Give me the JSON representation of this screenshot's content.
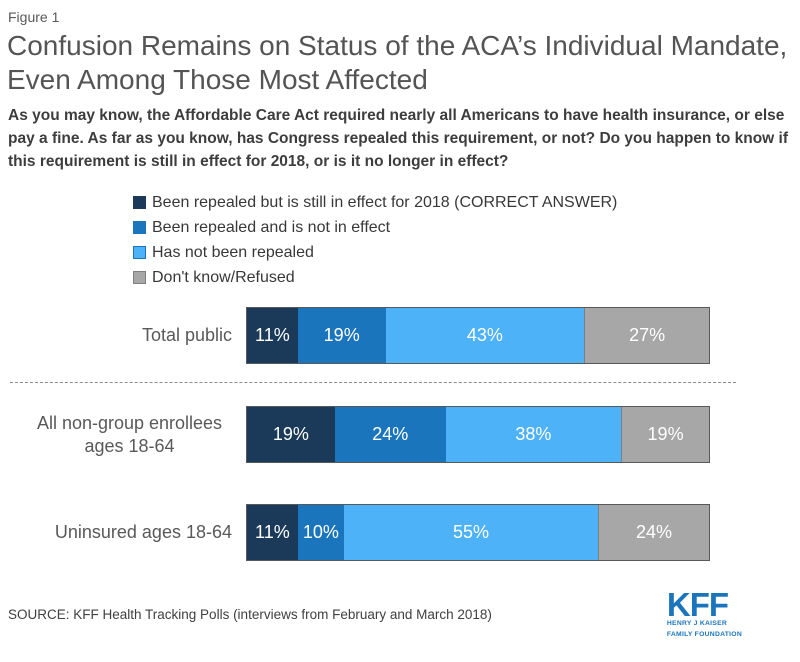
{
  "figure_label": "Figure 1",
  "title": "Confusion Remains on Status of the ACA’s Individual Mandate, Even Among Those Most Affected",
  "subtitle": "As you may know, the Affordable Care Act required nearly all Americans to have health insurance, or else pay a fine. As far as you know, has Congress repealed this requirement, or not? Do you happen to know if this requirement is still in effect for 2018, or is it no longer in effect?",
  "colors": {
    "dark_navy": "#1b3a5a",
    "medium_blue": "#1b75bc",
    "light_blue": "#4db2f8",
    "gray": "#a7a7a7",
    "bar_outline": "#58595b",
    "kff_blue": "#1b75bc"
  },
  "chart_data": {
    "type": "bar",
    "orientation": "horizontal-stacked",
    "title": "Confusion Remains on Status of the ACA’s Individual Mandate, Even Among Those Most Affected",
    "categories": [
      "Total public",
      "All non-group enrollees ages 18-64",
      "Uninsured ages 18-64"
    ],
    "series": [
      {
        "name": "Been repealed but is still in effect for 2018 (CORRECT ANSWER)",
        "color": "#1b3a5a",
        "values": [
          11,
          19,
          11
        ]
      },
      {
        "name": "Been repealed and is not in effect",
        "color": "#1b75bc",
        "values": [
          19,
          24,
          10
        ]
      },
      {
        "name": "Has not been repealed",
        "color": "#4db2f8",
        "swatch_border": "#1b75bc",
        "values": [
          43,
          38,
          55
        ]
      },
      {
        "name": "Don't know/Refused",
        "color": "#a7a7a7",
        "swatch_border": "#7f7f7f",
        "edge": "#7f7f7f",
        "values": [
          27,
          19,
          24
        ]
      }
    ],
    "value_suffix": "%",
    "xlim": [
      0,
      100
    ],
    "grid": false,
    "legend_position": "top-left",
    "data_labels": "inside-white",
    "separator_after_category": "Total public"
  },
  "source": "SOURCE: KFF Health Tracking Polls (interviews from February and March 2018)",
  "logo": {
    "text": "KFF",
    "tagline_line1": "HENRY J KAISER",
    "tagline_line2": "FAMILY FOUNDATION"
  }
}
